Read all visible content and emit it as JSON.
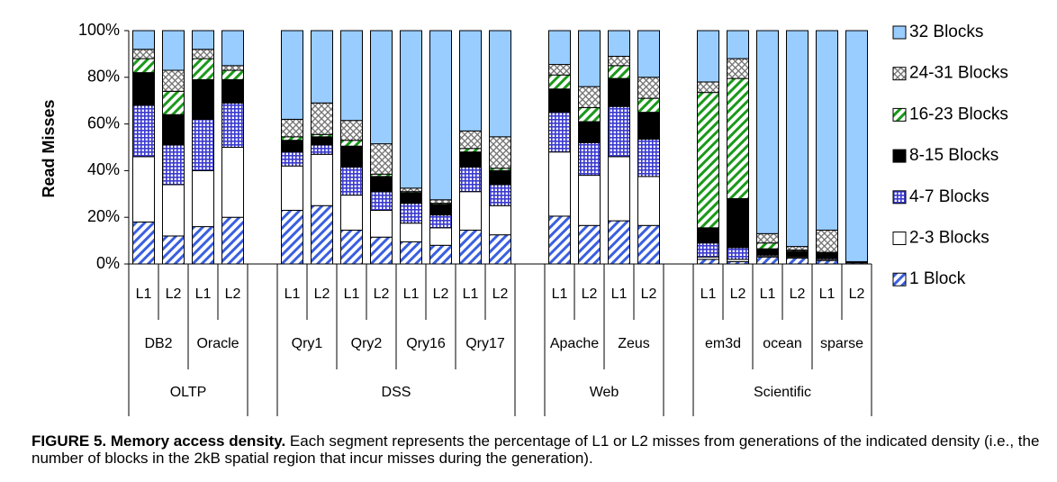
{
  "chart_data": {
    "type": "stacked_bar",
    "y_label": "Read Misses",
    "ylim": [
      0,
      100
    ],
    "yticks": [
      {
        "value": 0,
        "label": "0%"
      },
      {
        "value": 20,
        "label": "20%"
      },
      {
        "value": 40,
        "label": "40%"
      },
      {
        "value": 60,
        "label": "60%"
      },
      {
        "value": 80,
        "label": "80%"
      },
      {
        "value": 100,
        "label": "100%"
      }
    ],
    "groups": [
      {
        "name": "OLTP",
        "benchmarks": [
          {
            "name": "DB2",
            "levels": [
              "L1",
              "L2"
            ]
          },
          {
            "name": "Oracle",
            "levels": [
              "L1",
              "L2"
            ]
          }
        ]
      },
      {
        "name": "DSS",
        "benchmarks": [
          {
            "name": "Qry1",
            "levels": [
              "L1",
              "L2"
            ]
          },
          {
            "name": "Qry2",
            "levels": [
              "L1",
              "L2"
            ]
          },
          {
            "name": "Qry16",
            "levels": [
              "L1",
              "L2"
            ]
          },
          {
            "name": "Qry17",
            "levels": [
              "L1",
              "L2"
            ]
          }
        ]
      },
      {
        "name": "Web",
        "benchmarks": [
          {
            "name": "Apache",
            "levels": [
              "L1",
              "L2"
            ]
          },
          {
            "name": "Zeus",
            "levels": [
              "L1",
              "L2"
            ]
          }
        ]
      },
      {
        "name": "Scientific",
        "benchmarks": [
          {
            "name": "em3d",
            "levels": [
              "L1",
              "L2"
            ]
          },
          {
            "name": "ocean",
            "levels": [
              "L1",
              "L2"
            ]
          },
          {
            "name": "sparse",
            "levels": [
              "L1",
              "L2"
            ]
          }
        ]
      }
    ],
    "series": [
      {
        "name": "1 Block",
        "color": "#3a5fe0",
        "pattern": "diagonal",
        "values": [
          18,
          12,
          16,
          20,
          23,
          25,
          14.5,
          11.5,
          9.5,
          8,
          14.5,
          12.5,
          20.5,
          16.5,
          18.5,
          16.5,
          2,
          1,
          3,
          2.5,
          1.5,
          0.5
        ]
      },
      {
        "name": "2-3 Blocks",
        "color": "#ffffff",
        "pattern": "solid",
        "values": [
          28,
          22,
          24,
          30,
          19,
          22,
          15,
          11.5,
          8,
          7.5,
          16.5,
          12.5,
          27.5,
          21.5,
          27.5,
          21,
          1,
          1,
          0.5,
          0.5,
          0.5,
          0
        ]
      },
      {
        "name": "4-7 Blocks",
        "color": "#3a3ad0",
        "pattern": "grid",
        "values": [
          22,
          17,
          22,
          19,
          6,
          4,
          12,
          8,
          8.5,
          5.5,
          10.5,
          9,
          17,
          14,
          21.5,
          16,
          6,
          5,
          0.5,
          0,
          0.5,
          0
        ]
      },
      {
        "name": "8-15 Blocks",
        "color": "#000000",
        "pattern": "solid",
        "values": [
          14,
          13,
          17,
          10,
          5,
          3.5,
          9,
          6.5,
          4.5,
          4.5,
          6.5,
          6,
          10,
          9,
          12,
          11.5,
          6.5,
          21,
          2.5,
          2.5,
          2.5,
          0.5
        ]
      },
      {
        "name": "16-23 Blocks",
        "color": "#1a9a1a",
        "pattern": "diagonal",
        "values": [
          6,
          10,
          9,
          4,
          1.5,
          1,
          2.5,
          1,
          0.5,
          0.5,
          1.5,
          1,
          6,
          6,
          5.5,
          6,
          58,
          51.5,
          2.5,
          0.5,
          0,
          0
        ]
      },
      {
        "name": "24-31 Blocks",
        "color": "#707070",
        "pattern": "crosshatch",
        "values": [
          4,
          9,
          4,
          2,
          7.5,
          13.5,
          8.5,
          13,
          1.5,
          1.5,
          7.5,
          13.5,
          4.5,
          9,
          4,
          9,
          4.5,
          8.5,
          4,
          1.5,
          9.5,
          0
        ]
      },
      {
        "name": "32 Blocks",
        "color": "#99ccff",
        "pattern": "solid",
        "values": [
          8,
          17,
          8,
          15,
          38,
          31,
          38.5,
          48.5,
          67.5,
          72.5,
          43,
          45.5,
          14.5,
          24,
          11,
          20,
          22,
          12,
          87,
          92.5,
          85.5,
          99
        ]
      }
    ],
    "caption": {
      "label": "FIGURE 5. Memory access density.",
      "text": " Each segment represents the percentage of L1 or L2 misses from generations of the indicated density (i.e., the number of blocks in the 2kB spatial region that incur misses during the generation)."
    }
  }
}
